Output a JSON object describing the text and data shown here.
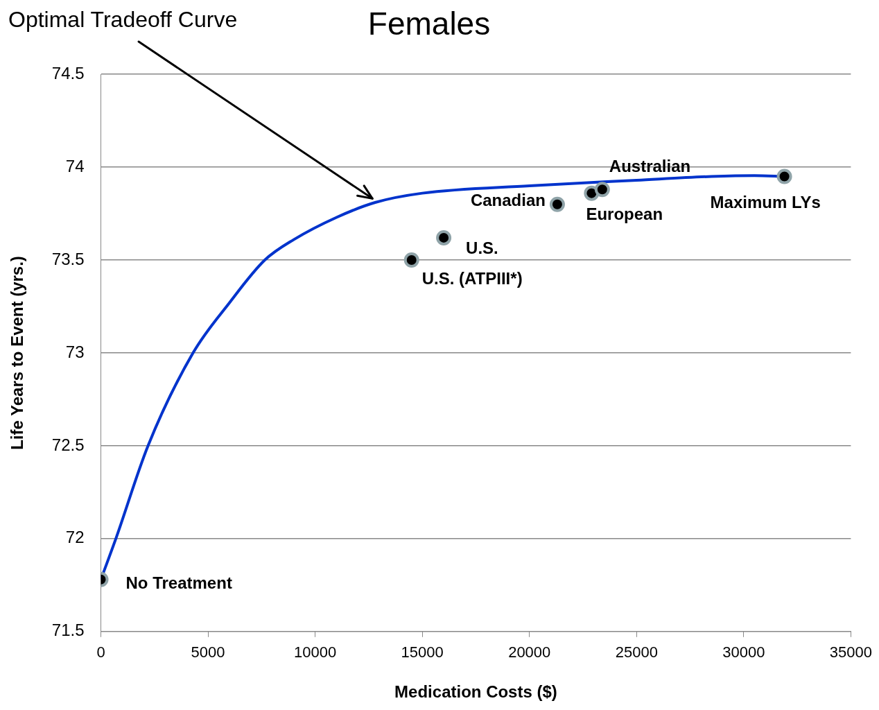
{
  "chart_data": {
    "type": "scatter",
    "title": "Females",
    "xlabel": "Medication Costs ($)",
    "ylabel": "Life Years to Event (yrs.)",
    "xlim": [
      0,
      35000
    ],
    "xticks": [
      0,
      5000,
      10000,
      15000,
      20000,
      25000,
      30000,
      35000
    ],
    "ylim": [
      71.5,
      74.5
    ],
    "yticks": [
      71.5,
      72,
      72.5,
      73,
      73.5,
      74,
      74.5
    ],
    "grid": "y",
    "legend": false,
    "marker": "circle",
    "series": [
      {
        "type": "line",
        "marker": "none",
        "color": "#0033cc",
        "x": [
          0,
          700,
          2200,
          4300,
          6000,
          7650,
          9000,
          11000,
          12800,
          15000,
          20000,
          25000,
          28500,
          30500,
          31900
        ],
        "values": [
          71.78,
          72,
          72.5,
          73,
          73.27,
          73.5,
          73.61,
          73.73,
          73.81,
          73.86,
          73.9,
          73.93,
          73.95,
          73.955,
          73.95
        ]
      },
      {
        "color": "#000000",
        "x": [
          0,
          14500,
          16000,
          21300,
          22900,
          23400,
          31900
        ],
        "values": [
          71.78,
          73.5,
          73.62,
          73.8,
          73.86,
          73.88,
          73.95
        ]
      }
    ],
    "annotations": [
      {
        "text": "Optimal Tradeoff Curve",
        "x": 12800,
        "y": 73.82
      },
      {
        "text": "No Treatment",
        "x": 0,
        "y": 71.78
      },
      {
        "text": "U.S. (ATPIII*)",
        "x": 14500,
        "y": 73.5
      },
      {
        "text": "U.S.",
        "x": 16000,
        "y": 73.62
      },
      {
        "text": "Canadian",
        "x": 21300,
        "y": 73.8
      },
      {
        "text": "European",
        "x": 22900,
        "y": 73.86
      },
      {
        "text": "Australian",
        "x": 23400,
        "y": 73.88
      },
      {
        "text": "Maximum LYs",
        "x": 31900,
        "y": 73.95
      }
    ]
  }
}
